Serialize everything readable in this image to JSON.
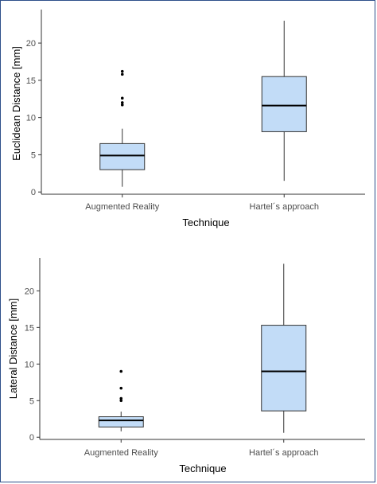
{
  "colors": {
    "box_fill": "#c2dcf7",
    "box_stroke": "#333333",
    "frame": "#2e4f8a",
    "axis": "#333333",
    "text": "#4d4d4d"
  },
  "chart_data": [
    {
      "type": "box",
      "xlabel": "Technique",
      "ylabel": "Euclidean Distance [mm]",
      "ylim": [
        -0.3,
        24.5
      ],
      "yticks": [
        0,
        5,
        10,
        15,
        20
      ],
      "ytick_labels": [
        "0",
        "5",
        "10",
        "15",
        "20"
      ],
      "grid": false,
      "categories": [
        "Augmented Reality",
        "Hartel´s approach"
      ],
      "boxes": [
        {
          "category": "Augmented Reality",
          "whisker_low": 0.7,
          "q1": 3.0,
          "median": 4.9,
          "q3": 6.5,
          "whisker_high": 8.5,
          "outliers": [
            11.7,
            12.0,
            12.6,
            15.8,
            16.2
          ]
        },
        {
          "category": "Hartel´s approach",
          "whisker_low": 1.5,
          "q1": 8.1,
          "median": 11.6,
          "q3": 15.5,
          "whisker_high": 23.0,
          "outliers": []
        }
      ]
    },
    {
      "type": "box",
      "xlabel": "Technique",
      "ylabel": "Lateral Distance [mm]",
      "ylim": [
        -0.3,
        24.5
      ],
      "yticks": [
        0,
        5,
        10,
        15,
        20
      ],
      "ytick_labels": [
        "0",
        "5",
        "10",
        "15",
        "20"
      ],
      "grid": false,
      "categories": [
        "Augmented Reality",
        "Hartel´s approach"
      ],
      "boxes": [
        {
          "category": "Augmented Reality",
          "whisker_low": 0.8,
          "q1": 1.4,
          "median": 2.3,
          "q3": 2.8,
          "whisker_high": 3.5,
          "outliers": [
            5.0,
            5.3,
            6.7,
            9.0
          ]
        },
        {
          "category": "Hartel´s approach",
          "whisker_low": 0.6,
          "q1": 3.6,
          "median": 9.0,
          "q3": 15.3,
          "whisker_high": 23.7,
          "outliers": []
        }
      ]
    }
  ]
}
